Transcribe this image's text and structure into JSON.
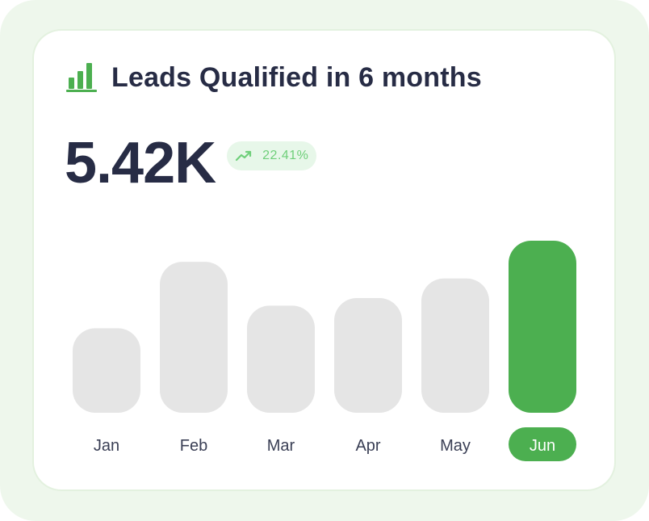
{
  "widget": {
    "title": "Leads Qualified in 6 months",
    "total_value": "5.42K",
    "change_percent": "22.41%",
    "trend_direction": "up",
    "icon": "bar-chart-icon",
    "trend_icon": "trending-up-icon"
  },
  "colors": {
    "accent": "#4caf50",
    "inactive_bar": "#e5e5e5",
    "text_dark": "#272c45",
    "badge_bg": "#e7f7e9",
    "badge_text": "#6fcf7a",
    "label_text": "#3a3f55"
  },
  "chart_data": {
    "type": "bar",
    "categories": [
      "Jan",
      "Feb",
      "Mar",
      "Apr",
      "May",
      "Jun"
    ],
    "values": [
      0.56,
      1.0,
      0.71,
      0.76,
      0.89,
      1.14
    ],
    "highlighted_category": "Jun",
    "ylim": [
      0,
      1.14
    ],
    "grid": false,
    "title": "",
    "xlabel": "",
    "ylabel": ""
  }
}
